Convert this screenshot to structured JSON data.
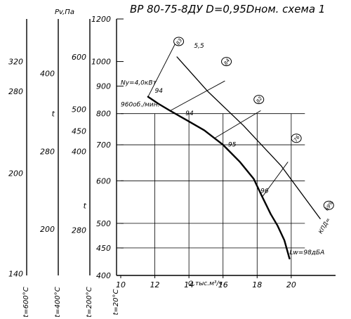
{
  "chart_data": {
    "type": "line",
    "title": "ВР 80-75-8ДУ D=0,95Dном. схема 1",
    "xlabel": "Q,тыс.м³/ч",
    "ylabel": "Pv,Па",
    "x_ticks": [
      "10",
      "12",
      "14",
      "16",
      "18",
      "20"
    ],
    "y_ticks": [
      "400",
      "450",
      "500",
      "600",
      "700",
      "800",
      "900",
      "1000",
      "1200"
    ],
    "xlim": [
      10,
      22.6
    ],
    "ylim": [
      400,
      1200
    ],
    "y_scale": "log",
    "grid": true,
    "main_curve": {
      "x": [
        11.6,
        12.2,
        12.9,
        13.8,
        14.9,
        16.0,
        17.0,
        17.8,
        18.3,
        18.8,
        19.2,
        19.6,
        19.9
      ],
      "y": [
        860,
        835,
        810,
        780,
        745,
        700,
        650,
        605,
        560,
        520,
        495,
        465,
        430
      ]
    },
    "efficiency_line": {
      "label": "КПД=",
      "x": [
        13.3,
        15.1,
        17.2,
        19.4,
        21.7
      ],
      "y": [
        1020,
        880,
        760,
        640,
        510
      ]
    },
    "ray_lines": [
      {
        "x": [
          11.6,
          13.2
        ],
        "y": [
          860,
          1080
        ]
      },
      {
        "x": [
          12.9,
          16.1
        ],
        "y": [
          810,
          920
        ]
      },
      {
        "x": [
          15.5,
          18.2
        ],
        "y": [
          720,
          810
        ]
      },
      {
        "x": [
          18.3,
          19.8
        ],
        "y": [
          560,
          650
        ]
      }
    ],
    "annotations": [
      {
        "text": "5,5",
        "x": 14.3,
        "y": 1060
      },
      {
        "text": "Ny=4,0кВт",
        "x": 10.0,
        "y": 905
      },
      {
        "text": "960об./мин.",
        "x": 10.0,
        "y": 825
      },
      {
        "text": "94",
        "x": 12.0,
        "y": 875
      },
      {
        "text": "94",
        "x": 13.8,
        "y": 795
      },
      {
        "text": "95",
        "x": 16.3,
        "y": 695
      },
      {
        "text": "96",
        "x": 18.2,
        "y": 570
      },
      {
        "text": "Lw=98дБА",
        "x": 19.9,
        "y": 438
      }
    ],
    "circled_labels": [
      {
        "text": "83",
        "x": 13.4,
        "y": 1090
      },
      {
        "text": "84",
        "x": 16.2,
        "y": 1000
      },
      {
        "text": "82",
        "x": 18.1,
        "y": 850
      },
      {
        "text": "76",
        "x": 20.3,
        "y": 720
      },
      {
        "text": "69%",
        "x": 22.2,
        "y": 540
      }
    ],
    "side_scales": [
      {
        "label": "t=600°C",
        "ticks": [
          {
            "value": "320",
            "y": 1000
          },
          {
            "value": "280",
            "y": 880
          },
          {
            "value": "200",
            "y": 620
          },
          {
            "value": "140",
            "y": 403
          }
        ]
      },
      {
        "label": "t=400°C",
        "ticks": [
          {
            "value": "400",
            "y": 950
          },
          {
            "value": "t",
            "y": 800
          },
          {
            "value": "280",
            "y": 680
          },
          {
            "value": "200",
            "y": 488
          }
        ]
      },
      {
        "label": "t=200°C",
        "ticks": [
          {
            "value": "600",
            "y": 1020
          },
          {
            "value": "500",
            "y": 815
          },
          {
            "value": "450",
            "y": 742
          },
          {
            "value": "400",
            "y": 680
          },
          {
            "value": "t",
            "y": 540
          },
          {
            "value": "280",
            "y": 486
          }
        ]
      },
      {
        "label": "t=20°C",
        "ticks": []
      }
    ]
  }
}
